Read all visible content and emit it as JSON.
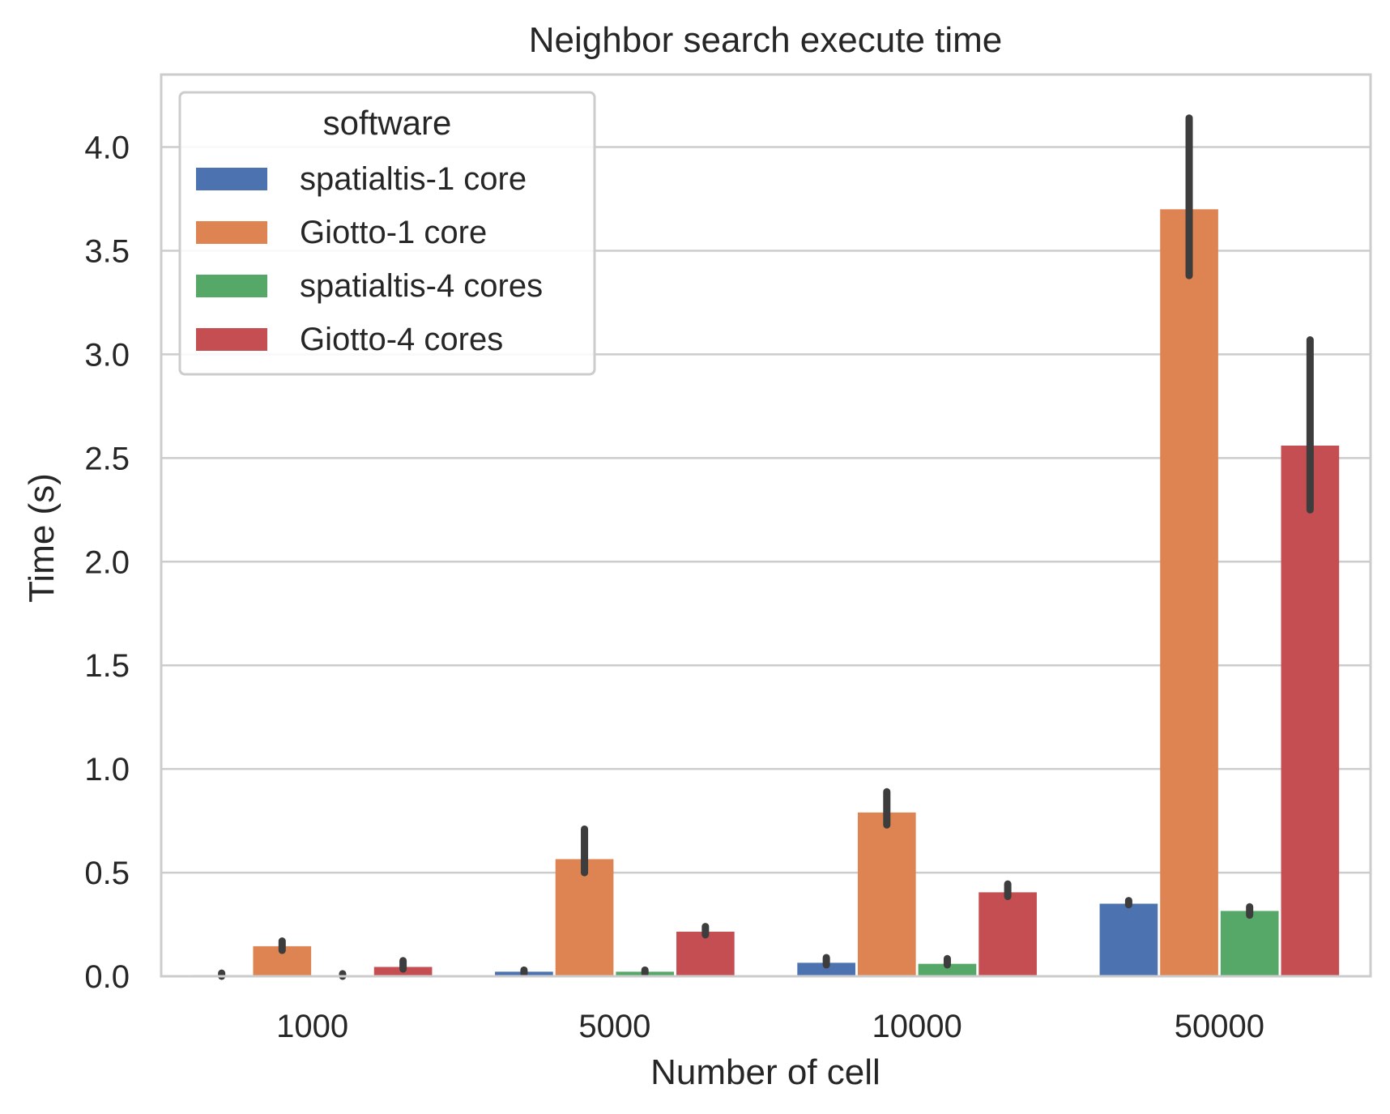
{
  "chart_data": {
    "type": "bar",
    "title": "Neighbor search execute time",
    "xlabel": "Number of cell",
    "ylabel": "Time (s)",
    "categories": [
      "1000",
      "5000",
      "10000",
      "50000"
    ],
    "ylim": [
      0,
      4.35
    ],
    "yticks": [
      "0.0",
      "0.5",
      "1.0",
      "1.5",
      "2.0",
      "2.5",
      "3.0",
      "3.5",
      "4.0"
    ],
    "grid": true,
    "legend": {
      "title": "software",
      "placement": "top-left"
    },
    "series": [
      {
        "name": "spatialtis-1 core",
        "color": "#4c72b0",
        "values": [
          0.006,
          0.022,
          0.065,
          0.35
        ],
        "error_low": [
          0.0,
          0.015,
          0.055,
          0.345
        ],
        "error_high": [
          0.015,
          0.03,
          0.09,
          0.365
        ]
      },
      {
        "name": "Giotto-1 core",
        "color": "#dd8452",
        "values": [
          0.145,
          0.565,
          0.79,
          3.7
        ],
        "error_low": [
          0.125,
          0.5,
          0.73,
          3.38
        ],
        "error_high": [
          0.17,
          0.71,
          0.89,
          4.14
        ]
      },
      {
        "name": "spatialtis-4 cores",
        "color": "#55a868",
        "values": [
          0.003,
          0.022,
          0.06,
          0.315
        ],
        "error_low": [
          0.0,
          0.015,
          0.055,
          0.295
        ],
        "error_high": [
          0.012,
          0.03,
          0.085,
          0.335
        ]
      },
      {
        "name": "Giotto-4 cores",
        "color": "#c44e52",
        "values": [
          0.045,
          0.215,
          0.405,
          2.56
        ],
        "error_low": [
          0.035,
          0.2,
          0.385,
          2.25
        ],
        "error_high": [
          0.075,
          0.24,
          0.445,
          3.07
        ]
      }
    ]
  }
}
